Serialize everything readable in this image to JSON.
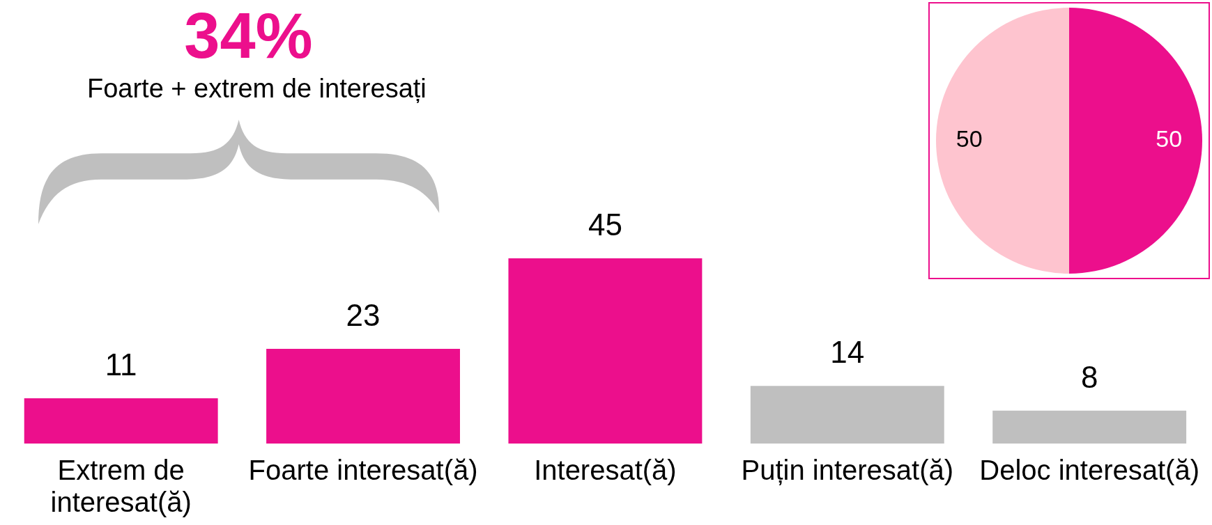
{
  "chart_data": [
    {
      "type": "bar",
      "categories": [
        "Extrem de interesat(ă)",
        "Foarte interesat(ă)",
        "Interesat(ă)",
        "Puțin interesat(ă)",
        "Deloc interesat(ă)"
      ],
      "values": [
        11,
        23,
        45,
        14,
        8
      ],
      "colors": [
        "#ec0f8c",
        "#ec0f8c",
        "#ec0f8c",
        "#bfbfbf",
        "#bfbfbf"
      ],
      "data_labels": true,
      "tick_labels": "x",
      "annotations": [
        "34%",
        "Foarte + extrem de interesați"
      ]
    },
    {
      "type": "pie",
      "categories": [
        null,
        null
      ],
      "values": [
        50,
        50
      ],
      "colors": [
        "#ec0f8c",
        "#fec4cf"
      ],
      "data_labels": true
    }
  ]
}
